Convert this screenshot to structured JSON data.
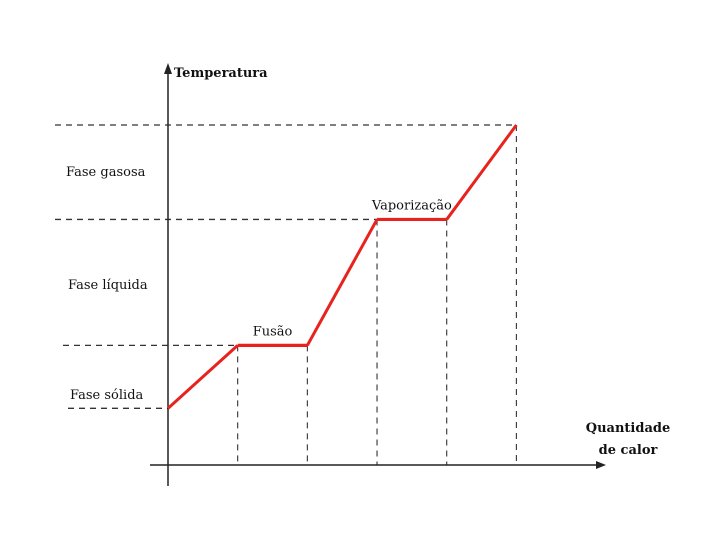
{
  "chart_data": {
    "type": "line",
    "title": "",
    "xlabel": "Quantidade de calor",
    "xlabel_lines": [
      "Quantidade",
      "de calor"
    ],
    "ylabel": "Temperatura",
    "grid": false,
    "axis_ticks": false,
    "curve_color": "#e8231e",
    "phase_labels": [
      "Fase gasosa",
      "Fase líquida",
      "Fase sólida"
    ],
    "transition_labels": {
      "fusion": "Fusão",
      "vaporization": "Vaporização"
    },
    "series": [
      {
        "name": "",
        "x": [
          0,
          1,
          2,
          3,
          4,
          5
        ],
        "y": [
          0,
          1,
          1,
          3,
          3,
          4.5
        ]
      }
    ],
    "xlim": [
      0,
      6.2
    ],
    "ylim": [
      -0.9,
      4.5
    ],
    "reference_levels_y": [
      0,
      1,
      3,
      4.5
    ],
    "reference_points_x": [
      1,
      2,
      3,
      4,
      5
    ]
  }
}
